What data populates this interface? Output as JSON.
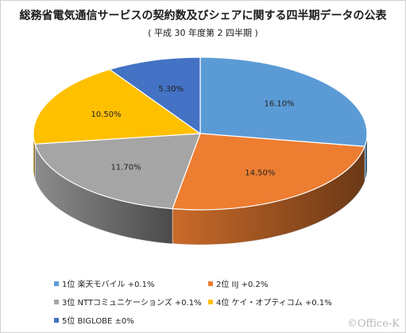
{
  "chart_data": {
    "type": "pie",
    "title": "総務省電気通信サービスの契約数及びシェアに関する四半期データの公表",
    "subtitle": "( 平成 30 年度第 2 四半期 )",
    "slices": [
      {
        "name": "1位 楽天モバイル +0.1%",
        "value": 16.1,
        "label": "16.10%",
        "color": "#5b9bd5"
      },
      {
        "name": "2位 IIJ +0.2%",
        "value": 14.5,
        "label": "14.50%",
        "color": "#ed7d31"
      },
      {
        "name": "3位 NTTコミュニケーションズ +0.1%",
        "value": 11.7,
        "label": "11.70%",
        "color": "#a5a5a5"
      },
      {
        "name": "4位 ケイ・オプティコム +0.1%",
        "value": 10.5,
        "label": "10.50%",
        "color": "#ffc000"
      },
      {
        "name": "5位 BIGLOBE ±0%",
        "value": 5.3,
        "label": "5.30%",
        "color": "#4472c4"
      }
    ],
    "legend_position": "bottom"
  },
  "watermark": "©Office-K"
}
